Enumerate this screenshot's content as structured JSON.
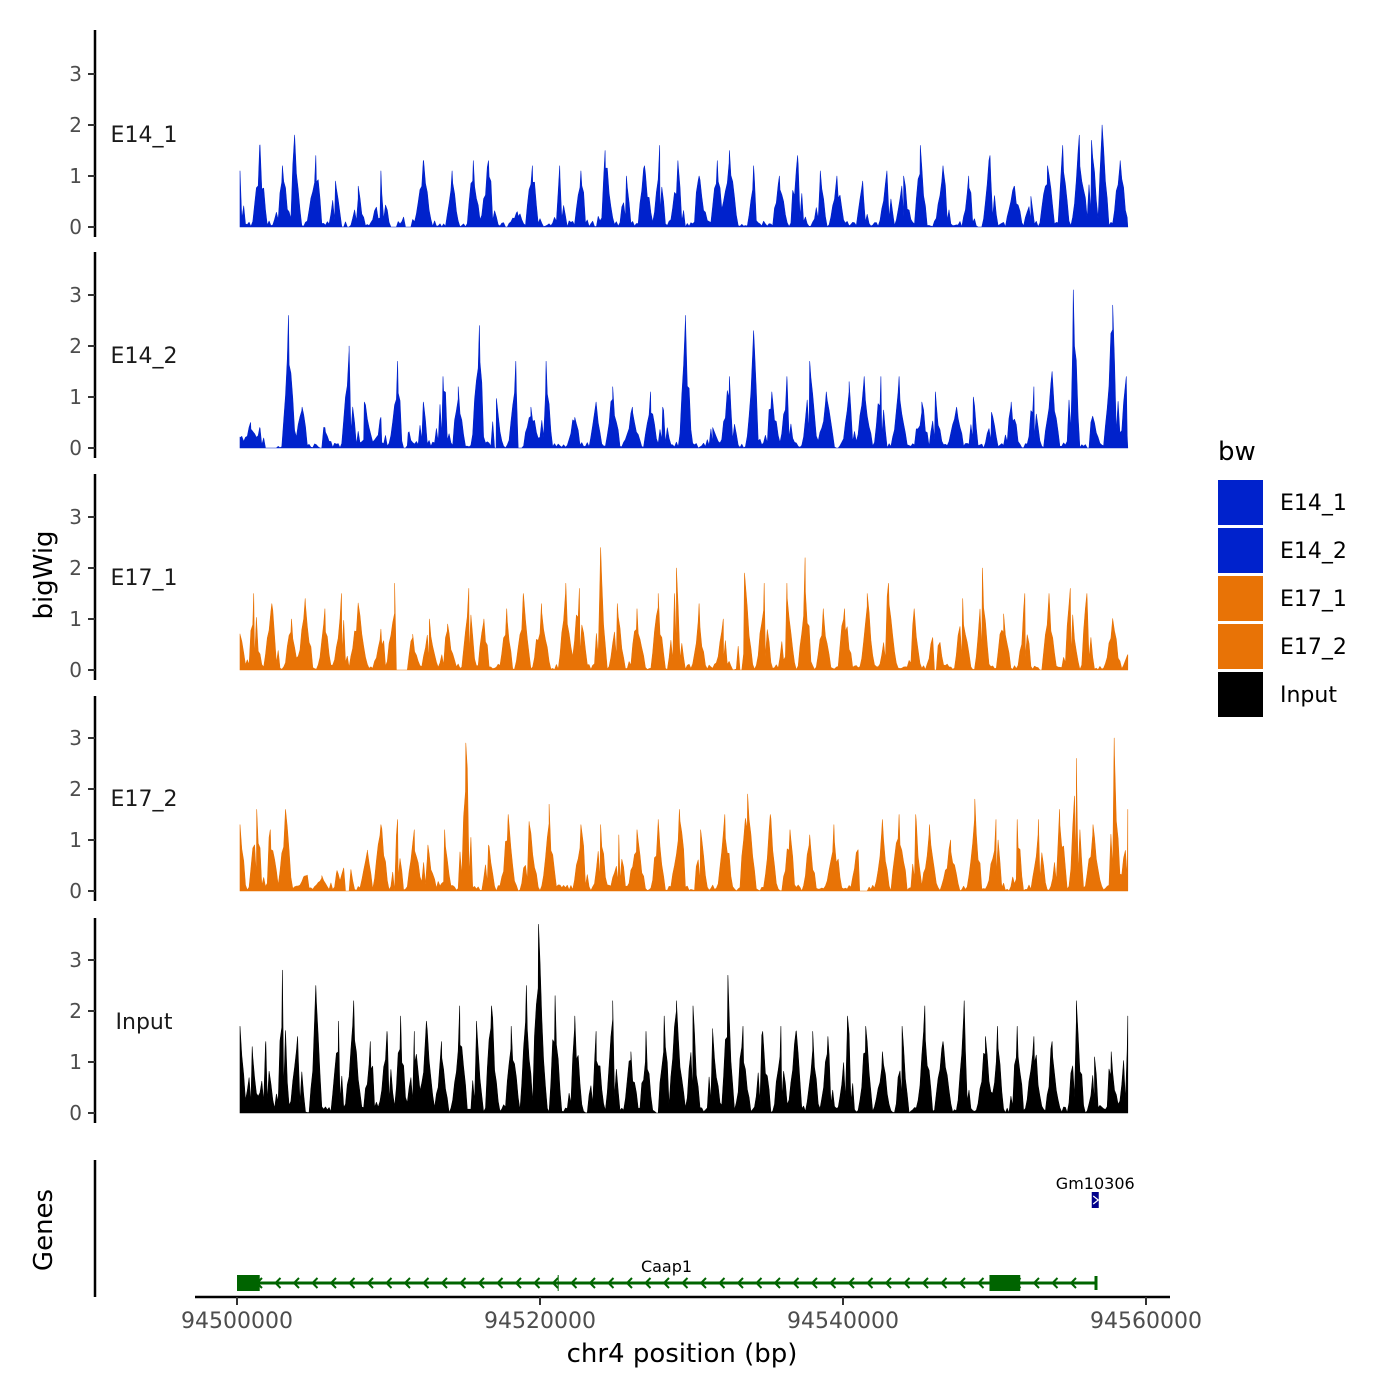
{
  "chart_data": {
    "type": "area",
    "title": "",
    "xlabel": "chr4 position (bp)",
    "ylabel": "bigWig",
    "genes_ylabel": "Genes",
    "xlim": [
      94500000,
      94560000
    ],
    "x_ticks": [
      94500000,
      94520000,
      94540000,
      94560000
    ],
    "x_tick_labels": [
      "94500000",
      "94520000",
      "94540000",
      "94560000"
    ],
    "ylim": [
      0,
      3.8
    ],
    "y_ticks": [
      0,
      1,
      2,
      3
    ],
    "y_tick_labels": [
      "0",
      "1",
      "2",
      "3"
    ],
    "region": [
      94500200,
      94558800
    ],
    "legend": {
      "title": "bw",
      "position": "right",
      "entries": [
        {
          "name": "E14_1",
          "color": "#0022cc"
        },
        {
          "name": "E14_2",
          "color": "#0022cc"
        },
        {
          "name": "E17_1",
          "color": "#e87306"
        },
        {
          "name": "E17_2",
          "color": "#e87306"
        },
        {
          "name": "Input",
          "color": "#000000"
        }
      ]
    },
    "series": [
      {
        "name": "E14_1",
        "color": "#0022cc",
        "peaks": [
          [
            94500200,
            1.1
          ],
          [
            94501500,
            1.6
          ],
          [
            94503000,
            1.2
          ],
          [
            94503800,
            1.8
          ],
          [
            94505200,
            1.4
          ],
          [
            94506500,
            0.9
          ],
          [
            94508000,
            0.8
          ],
          [
            94509500,
            1.1
          ],
          [
            94511300,
            0.3
          ],
          [
            94512300,
            1.3
          ],
          [
            94514200,
            1.1
          ],
          [
            94515600,
            1.3
          ],
          [
            94516600,
            1.3
          ],
          [
            94518500,
            0.3
          ],
          [
            94519500,
            1.2
          ],
          [
            94521300,
            1.2
          ],
          [
            94522700,
            1.1
          ],
          [
            94524300,
            1.5
          ],
          [
            94525700,
            1.0
          ],
          [
            94526900,
            1.2
          ],
          [
            94527900,
            1.6
          ],
          [
            94529100,
            1.3
          ],
          [
            94530500,
            1.0
          ],
          [
            94531700,
            1.3
          ],
          [
            94532500,
            1.5
          ],
          [
            94534100,
            1.2
          ],
          [
            94535800,
            1.0
          ],
          [
            94537000,
            1.4
          ],
          [
            94538500,
            1.1
          ],
          [
            94539600,
            1.0
          ],
          [
            94541300,
            0.9
          ],
          [
            94542900,
            1.1
          ],
          [
            94544000,
            1.0
          ],
          [
            94545100,
            1.6
          ],
          [
            94546600,
            1.2
          ],
          [
            94548300,
            1.0
          ],
          [
            94549700,
            1.4
          ],
          [
            94551300,
            0.8
          ],
          [
            94552400,
            0.6
          ],
          [
            94553500,
            1.2
          ],
          [
            94554500,
            1.6
          ],
          [
            94555600,
            1.8
          ],
          [
            94556400,
            1.7
          ],
          [
            94557100,
            2.0
          ],
          [
            94558300,
            1.3
          ]
        ],
        "gaps": [
          [
            94507200,
            94507500
          ],
          [
            94510100,
            94510600
          ],
          [
            94511100,
            94511500
          ],
          [
            94517700,
            94517900
          ],
          [
            94548900,
            94549200
          ]
        ]
      },
      {
        "name": "E14_2",
        "color": "#0022cc",
        "peaks": [
          [
            94500200,
            0.2
          ],
          [
            94500900,
            0.5
          ],
          [
            94501500,
            0.4
          ],
          [
            94503400,
            2.6
          ],
          [
            94504300,
            0.8
          ],
          [
            94505800,
            0.4
          ],
          [
            94507400,
            2.0
          ],
          [
            94508400,
            0.9
          ],
          [
            94509500,
            0.6
          ],
          [
            94510600,
            1.7
          ],
          [
            94511300,
            0.3
          ],
          [
            94512300,
            0.9
          ],
          [
            94513600,
            1.4
          ],
          [
            94514600,
            1.2
          ],
          [
            94516000,
            2.4
          ],
          [
            94517100,
            1.0
          ],
          [
            94518400,
            1.7
          ],
          [
            94519400,
            0.8
          ],
          [
            94520400,
            1.7
          ],
          [
            94522300,
            0.6
          ],
          [
            94523700,
            0.9
          ],
          [
            94524800,
            1.2
          ],
          [
            94526100,
            0.8
          ],
          [
            94527300,
            1.1
          ],
          [
            94528100,
            0.8
          ],
          [
            94529600,
            2.6
          ],
          [
            94531400,
            0.4
          ],
          [
            94532500,
            1.4
          ],
          [
            94534100,
            2.3
          ],
          [
            94535300,
            1.1
          ],
          [
            94536300,
            1.4
          ],
          [
            94537800,
            1.7
          ],
          [
            94538900,
            1.1
          ],
          [
            94540400,
            1.3
          ],
          [
            94541400,
            1.4
          ],
          [
            94542500,
            1.4
          ],
          [
            94543700,
            1.4
          ],
          [
            94545200,
            0.9
          ],
          [
            94546100,
            1.1
          ],
          [
            94547500,
            0.8
          ],
          [
            94548600,
            1.0
          ],
          [
            94549800,
            0.7
          ],
          [
            94551100,
            0.9
          ],
          [
            94552600,
            1.2
          ],
          [
            94553800,
            1.5
          ],
          [
            94555200,
            3.1
          ],
          [
            94556500,
            0.6
          ],
          [
            94557800,
            2.8
          ],
          [
            94558700,
            1.4
          ]
        ],
        "gaps": [
          [
            94501800,
            94502700
          ],
          [
            94505400,
            94505600
          ],
          [
            94510900,
            94511200
          ],
          [
            94516900,
            94517100
          ],
          [
            94518500,
            94518800
          ],
          [
            94539500,
            94539700
          ],
          [
            94556100,
            94556300
          ]
        ]
      },
      {
        "name": "E17_1",
        "color": "#e87306",
        "peaks": [
          [
            94500200,
            0.7
          ],
          [
            94501100,
            1.5
          ],
          [
            94502300,
            1.3
          ],
          [
            94503600,
            1.0
          ],
          [
            94504500,
            1.4
          ],
          [
            94505800,
            1.2
          ],
          [
            94506900,
            1.5
          ],
          [
            94508000,
            1.3
          ],
          [
            94509500,
            0.8
          ],
          [
            94510400,
            1.7
          ],
          [
            94511600,
            0.7
          ],
          [
            94512700,
            1.0
          ],
          [
            94513900,
            0.9
          ],
          [
            94515300,
            1.6
          ],
          [
            94516300,
            1.0
          ],
          [
            94517800,
            1.2
          ],
          [
            94518900,
            1.5
          ],
          [
            94520100,
            1.3
          ],
          [
            94521700,
            1.7
          ],
          [
            94522600,
            1.6
          ],
          [
            94524000,
            2.4
          ],
          [
            94525100,
            1.3
          ],
          [
            94526400,
            1.2
          ],
          [
            94527800,
            1.5
          ],
          [
            94529000,
            2.0
          ],
          [
            94530500,
            1.3
          ],
          [
            94532100,
            1.0
          ],
          [
            94533500,
            1.9
          ],
          [
            94534800,
            1.7
          ],
          [
            94536300,
            1.7
          ],
          [
            94537500,
            2.2
          ],
          [
            94538700,
            1.2
          ],
          [
            94540100,
            1.2
          ],
          [
            94541600,
            1.5
          ],
          [
            94543000,
            1.7
          ],
          [
            94544700,
            1.2
          ],
          [
            94546100,
            1.1
          ],
          [
            94547900,
            1.4
          ],
          [
            94549200,
            2.0
          ],
          [
            94550600,
            1.1
          ],
          [
            94552000,
            1.5
          ],
          [
            94553600,
            1.5
          ],
          [
            94555000,
            1.6
          ],
          [
            94556100,
            1.5
          ],
          [
            94557800,
            1.0
          ],
          [
            94558800,
            0.3
          ]
        ],
        "gaps": [
          [
            94510500,
            94511300
          ],
          [
            94533200,
            94533400
          ],
          [
            94546000,
            94546200
          ],
          [
            94552900,
            94553200
          ]
        ]
      },
      {
        "name": "E17_2",
        "color": "#e87306",
        "peaks": [
          [
            94500200,
            1.3
          ],
          [
            94501300,
            1.6
          ],
          [
            94502200,
            1.2
          ],
          [
            94503200,
            1.6
          ],
          [
            94504500,
            0.3
          ],
          [
            94505600,
            0.3
          ],
          [
            94506600,
            0.4
          ],
          [
            94507200,
            0.8
          ],
          [
            94508600,
            0.8
          ],
          [
            94509500,
            1.3
          ],
          [
            94510600,
            1.4
          ],
          [
            94511700,
            1.2
          ],
          [
            94512600,
            0.9
          ],
          [
            94513700,
            1.2
          ],
          [
            94515100,
            2.9
          ],
          [
            94516600,
            0.9
          ],
          [
            94517900,
            1.5
          ],
          [
            94519300,
            1.3
          ],
          [
            94520600,
            1.7
          ],
          [
            94522700,
            1.3
          ],
          [
            94524000,
            1.3
          ],
          [
            94525200,
            1.1
          ],
          [
            94526400,
            1.2
          ],
          [
            94527800,
            1.4
          ],
          [
            94529200,
            1.6
          ],
          [
            94530600,
            1.2
          ],
          [
            94532200,
            1.5
          ],
          [
            94533700,
            1.9
          ],
          [
            94535200,
            1.5
          ],
          [
            94536500,
            1.2
          ],
          [
            94537800,
            1.1
          ],
          [
            94539400,
            1.3
          ],
          [
            94541100,
            1.1
          ],
          [
            94542600,
            1.4
          ],
          [
            94543700,
            1.5
          ],
          [
            94544800,
            1.5
          ],
          [
            94545700,
            1.3
          ],
          [
            94547100,
            1.0
          ],
          [
            94548700,
            1.8
          ],
          [
            94550100,
            1.4
          ],
          [
            94551500,
            1.4
          ],
          [
            94552900,
            1.4
          ],
          [
            94554300,
            1.6
          ],
          [
            94555400,
            2.6
          ],
          [
            94556500,
            1.3
          ],
          [
            94557900,
            3.0
          ],
          [
            94558800,
            1.6
          ]
        ],
        "gaps": [
          [
            94507100,
            94507400
          ],
          [
            94510300,
            94510500
          ],
          [
            94541100,
            94541600
          ]
        ]
      },
      {
        "name": "Input",
        "color": "#000000",
        "peaks": [
          [
            94500200,
            1.7
          ],
          [
            94501000,
            1.3
          ],
          [
            94501900,
            1.4
          ],
          [
            94503000,
            2.8
          ],
          [
            94504000,
            1.5
          ],
          [
            94505200,
            2.5
          ],
          [
            94506700,
            1.8
          ],
          [
            94507700,
            2.2
          ],
          [
            94508800,
            1.4
          ],
          [
            94509900,
            1.6
          ],
          [
            94510800,
            1.9
          ],
          [
            94511700,
            1.6
          ],
          [
            94512500,
            1.8
          ],
          [
            94513500,
            1.4
          ],
          [
            94514700,
            2.1
          ],
          [
            94515800,
            1.8
          ],
          [
            94516800,
            2.1
          ],
          [
            94518100,
            1.7
          ],
          [
            94519100,
            2.5
          ],
          [
            94519900,
            3.7
          ],
          [
            94521000,
            2.3
          ],
          [
            94522300,
            1.9
          ],
          [
            94523700,
            1.6
          ],
          [
            94524800,
            2.2
          ],
          [
            94526000,
            1.2
          ],
          [
            94527000,
            1.6
          ],
          [
            94528200,
            1.9
          ],
          [
            94529000,
            2.2
          ],
          [
            94530100,
            2.1
          ],
          [
            94531400,
            1.6
          ],
          [
            94532400,
            2.7
          ],
          [
            94533400,
            1.7
          ],
          [
            94534700,
            1.6
          ],
          [
            94535900,
            1.7
          ],
          [
            94536900,
            1.6
          ],
          [
            94538000,
            1.6
          ],
          [
            94539000,
            1.5
          ],
          [
            94540300,
            1.9
          ],
          [
            94541500,
            1.7
          ],
          [
            94542600,
            1.2
          ],
          [
            94543900,
            1.7
          ],
          [
            94545400,
            2.1
          ],
          [
            94546600,
            1.4
          ],
          [
            94548000,
            2.2
          ],
          [
            94549400,
            1.5
          ],
          [
            94550200,
            1.7
          ],
          [
            94551500,
            1.7
          ],
          [
            94552600,
            1.5
          ],
          [
            94553800,
            1.4
          ],
          [
            94555400,
            2.2
          ],
          [
            94556600,
            1.1
          ],
          [
            94557700,
            1.2
          ],
          [
            94558800,
            1.9
          ]
        ],
        "gaps": [
          [
            94527600,
            94527800
          ]
        ]
      }
    ],
    "genes": [
      {
        "name": "Caap1",
        "strand": "-",
        "start": 94500000,
        "end": 94556700,
        "color": "#006400",
        "row": 1,
        "exons": [
          [
            94500000,
            94501500
          ],
          [
            94549700,
            94551700
          ]
        ],
        "intron_marks": [
          94521200,
          94549700
        ]
      },
      {
        "name": "Gm10306",
        "strand": "+",
        "start": 94556400,
        "end": 94556900,
        "color": "#00008b",
        "row": 2,
        "exons": [
          [
            94556400,
            94556900
          ]
        ],
        "intron_marks": []
      }
    ]
  }
}
